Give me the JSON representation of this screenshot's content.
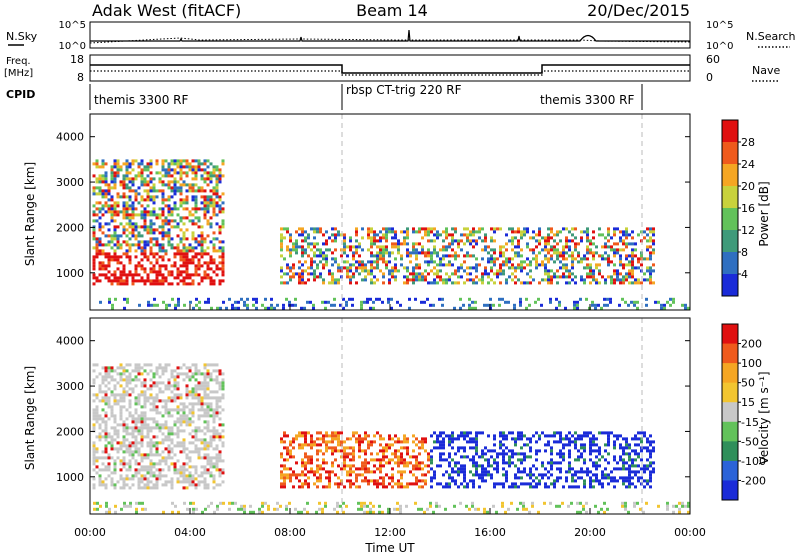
{
  "header": {
    "station": "Adak West (fitACF)",
    "beam": "Beam 14",
    "date": "20/Dec/2015"
  },
  "top_panels": {
    "nsky_label": "N.Sky",
    "nsky_tick_top": "10^5",
    "nsky_tick_bottom": "10^0",
    "nsearch_label": "N.Search",
    "nsearch_tick_top": "10^5",
    "nsearch_tick_bottom": "10^0",
    "freq_label": "Freq.",
    "freq_unit": "[MHz]",
    "freq_tick_top": "18",
    "freq_tick_bottom": "8",
    "nave_label": "Nave",
    "nave_tick_top": "60",
    "nave_tick_bottom": "0",
    "cpid_label": "CPID"
  },
  "cpid_segments": [
    {
      "label": "themis 3300 RF",
      "start_hour": 0,
      "end_hour": 10
    },
    {
      "label": "rbsp CT-trig 220 RF",
      "start_hour": 10,
      "end_hour": 22
    },
    {
      "label": "themis 3300 RF",
      "start_hour": 22,
      "end_hour": 24
    }
  ],
  "chart_data": [
    {
      "type": "heatmap",
      "name": "power",
      "ylabel": "Slant Range [km]",
      "x_range_hours": [
        0,
        24
      ],
      "ylim": [
        180,
        4500
      ],
      "yticks": [
        1000,
        2000,
        3000,
        4000
      ],
      "colorbar": {
        "label": "Power [dB]",
        "ticks": [
          "4",
          "8",
          "12",
          "16",
          "20",
          "24",
          "28"
        ],
        "colors": [
          "#1a2bd8",
          "#2f6fc0",
          "#3f9a7a",
          "#62c25a",
          "#c8d23c",
          "#f5a623",
          "#ef5a1c",
          "#e01010"
        ]
      },
      "regions": [
        {
          "start_hour": 0.1,
          "end_hour": 5.3,
          "range_low": 750,
          "range_high": 3500
        },
        {
          "start_hour": 7.6,
          "end_hour": 22.5,
          "range_low": 750,
          "range_high": 2000
        },
        {
          "start_hour": 0.0,
          "end_hour": 24.0,
          "range_low": 200,
          "range_high": 450
        }
      ]
    },
    {
      "type": "heatmap",
      "name": "velocity",
      "ylabel": "Slant Range [km]",
      "xlabel": "Time UT",
      "x_range_hours": [
        0,
        24
      ],
      "xticks": [
        "00:00",
        "04:00",
        "08:00",
        "12:00",
        "16:00",
        "20:00",
        "00:00"
      ],
      "ylim": [
        180,
        4500
      ],
      "yticks": [
        1000,
        2000,
        3000,
        4000
      ],
      "colorbar": {
        "label": "Velocity [m s⁻¹]",
        "ticks": [
          "200",
          "100",
          "50",
          "15",
          "-15",
          "-50",
          "-100",
          "-200"
        ],
        "colors": [
          "#1a2bd8",
          "#2b63d8",
          "#2f8f5a",
          "#62c25a",
          "#c8c8c8",
          "#f2c530",
          "#f5a623",
          "#ef5a1c",
          "#e01010"
        ]
      },
      "regions": [
        {
          "start_hour": 0.1,
          "end_hour": 5.3,
          "range_low": 750,
          "range_high": 3500
        },
        {
          "start_hour": 7.6,
          "end_hour": 22.5,
          "range_low": 750,
          "range_high": 2000
        },
        {
          "start_hour": 0.0,
          "end_hour": 24.0,
          "range_low": 200,
          "range_high": 450
        }
      ]
    }
  ]
}
